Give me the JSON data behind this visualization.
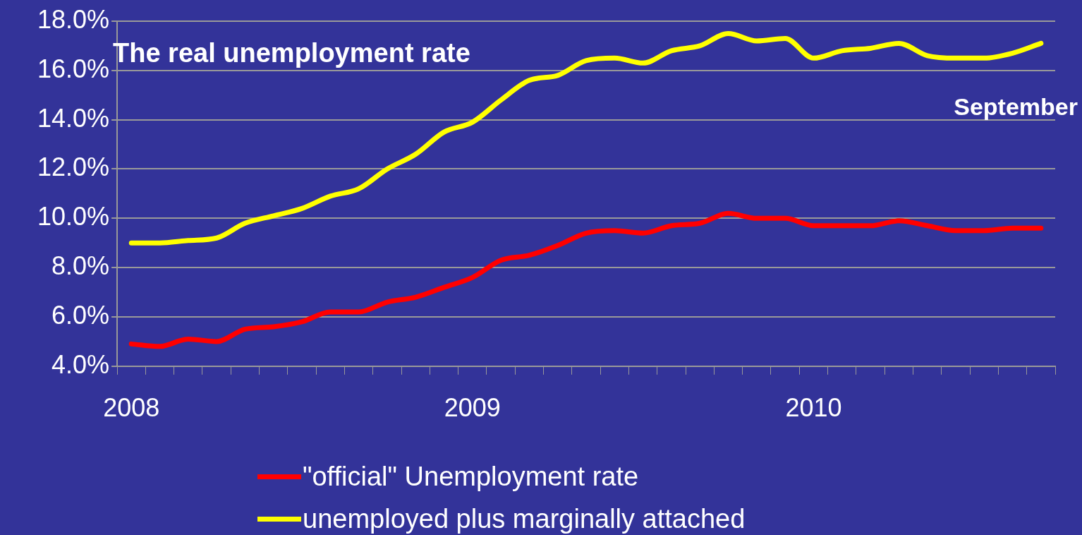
{
  "chart_data": {
    "type": "line",
    "title": "The real unemployment rate",
    "categories": [
      "2008",
      null,
      null,
      null,
      null,
      null,
      null,
      null,
      null,
      null,
      null,
      null,
      "2009",
      null,
      null,
      null,
      null,
      null,
      null,
      null,
      null,
      null,
      null,
      null,
      "2010",
      null,
      null,
      null,
      null,
      null,
      null,
      null,
      null
    ],
    "series": [
      {
        "name": "\"official\" Unemployment rate",
        "color": "#ff0000",
        "values": [
          4.9,
          4.8,
          5.1,
          5.0,
          5.5,
          5.6,
          5.8,
          6.2,
          6.2,
          6.6,
          6.8,
          7.2,
          7.6,
          8.3,
          8.5,
          8.9,
          9.4,
          9.5,
          9.4,
          9.7,
          9.8,
          10.2,
          10.0,
          10.0,
          9.7,
          9.7,
          9.7,
          9.9,
          9.7,
          9.5,
          9.5,
          9.6,
          9.6
        ]
      },
      {
        "name": "unemployed plus marginally attached",
        "color": "#ffff00",
        "values": [
          9.0,
          9.0,
          9.1,
          9.2,
          9.8,
          10.1,
          10.4,
          10.9,
          11.2,
          12.0,
          12.6,
          13.5,
          13.9,
          14.8,
          15.6,
          15.8,
          16.4,
          16.5,
          16.3,
          16.8,
          17.0,
          17.5,
          17.2,
          17.3,
          16.5,
          16.8,
          16.9,
          17.1,
          16.6,
          16.5,
          16.5,
          16.7,
          17.1
        ]
      }
    ],
    "ylim": [
      4,
      18
    ],
    "yticks": [
      {
        "value": 4,
        "label": "4.0%"
      },
      {
        "value": 6,
        "label": "6.0%"
      },
      {
        "value": 8,
        "label": "8.0%"
      },
      {
        "value": 10,
        "label": "10.0%"
      },
      {
        "value": 12,
        "label": "12.0%"
      },
      {
        "value": 14,
        "label": "14.0%"
      },
      {
        "value": 16,
        "label": "16.0%"
      },
      {
        "value": 18,
        "label": "18.0%"
      }
    ],
    "annotations": [
      "September"
    ],
    "grid": "y",
    "legend": "bottom",
    "marker": "none",
    "line_style": "solid"
  }
}
